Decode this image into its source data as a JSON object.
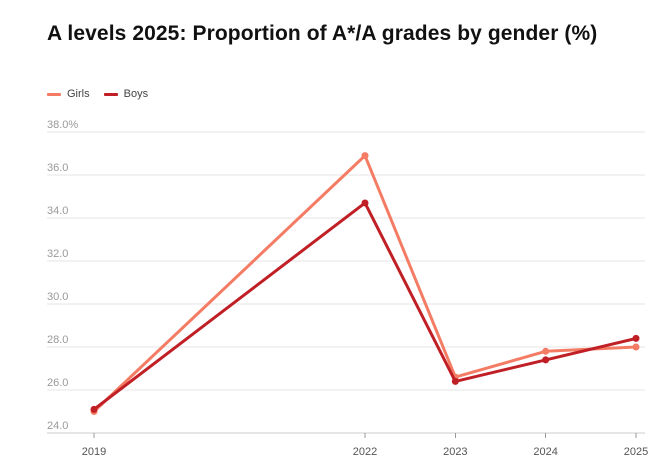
{
  "chart_data": {
    "type": "line",
    "title": "A levels 2025: Proportion of A*/A grades by gender (%)",
    "xlabel": "",
    "ylabel": "",
    "x": [
      2019,
      2022,
      2023,
      2024,
      2025
    ],
    "categories": [
      "2019",
      "2022",
      "2023",
      "2024",
      "2025"
    ],
    "ylim": [
      24,
      38
    ],
    "yticks": [
      24,
      26,
      28,
      30,
      32,
      34,
      36,
      38
    ],
    "ytick_labels": [
      "24.0",
      "26.0",
      "28.0",
      "30.0",
      "32.0",
      "34.0",
      "36.0",
      "38.0%"
    ],
    "grid": true,
    "legend_position": "top-left",
    "series": [
      {
        "name": "Girls",
        "color": "#f47c65",
        "values": [
          25.0,
          36.9,
          26.6,
          27.8,
          28.0
        ]
      },
      {
        "name": "Boys",
        "color": "#c01f25",
        "values": [
          25.1,
          34.7,
          26.4,
          27.4,
          28.4
        ]
      }
    ]
  }
}
